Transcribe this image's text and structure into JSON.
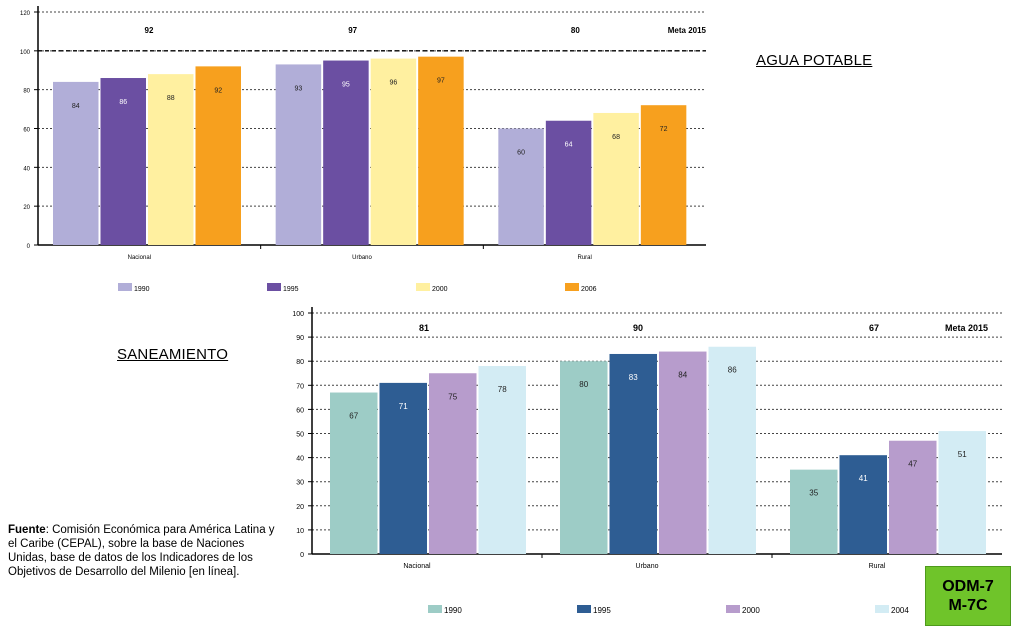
{
  "agua": {
    "title": "AGUA POTABLE",
    "chart_data": {
      "type": "bar",
      "categories": [
        "Nacional",
        "Urbano",
        "Rural"
      ],
      "series": [
        {
          "name": "1990",
          "values": [
            84,
            93,
            60
          ],
          "labels": [
            "84",
            "93",
            "60"
          ],
          "color": "#b1aed8"
        },
        {
          "name": "1995",
          "values": [
            86,
            95,
            64
          ],
          "labels": [
            "86",
            "95",
            "64"
          ],
          "color": "#6b4fa2"
        },
        {
          "name": "2000",
          "values": [
            88,
            96,
            68
          ],
          "labels": [
            "88",
            "96",
            "68"
          ],
          "color": "#fff0a0"
        },
        {
          "name": "2006",
          "values": [
            92,
            97,
            72
          ],
          "labels": [
            "92",
            "97",
            "72"
          ],
          "color": "#f7a01e"
        }
      ],
      "targets": [
        {
          "category": "Nacional",
          "label": "92"
        },
        {
          "category": "Urbano",
          "label": "97"
        },
        {
          "category": "Rural",
          "label": "80"
        }
      ],
      "meta_label": "Meta 2015",
      "ylim": [
        0,
        120
      ],
      "yticks": [
        "0",
        "20",
        "40",
        "60",
        "80",
        "100",
        "120"
      ],
      "target_line": 100,
      "grid": true,
      "legend_position": "bottom"
    }
  },
  "saneamiento": {
    "title": "SANEAMIENTO",
    "chart_data": {
      "type": "bar",
      "categories": [
        "Nacional",
        "Urbano",
        "Rural"
      ],
      "series": [
        {
          "name": "1990",
          "values": [
            67,
            80,
            35
          ],
          "labels": [
            "67",
            "80",
            "35"
          ],
          "color": "#9dccc6"
        },
        {
          "name": "1995",
          "values": [
            71,
            83,
            41
          ],
          "labels": [
            "71",
            "83",
            "41"
          ],
          "color": "#2e5d93"
        },
        {
          "name": "2000",
          "values": [
            75,
            84,
            47
          ],
          "labels": [
            "75",
            "84",
            "47"
          ],
          "color": "#b79ccc"
        },
        {
          "name": "2004",
          "values": [
            78,
            86,
            51
          ],
          "labels": [
            "78",
            "86",
            "51"
          ],
          "color": "#d3ecf4"
        }
      ],
      "targets": [
        {
          "category": "Nacional",
          "label": "81"
        },
        {
          "category": "Urbano",
          "label": "90"
        },
        {
          "category": "Rural",
          "label": "67"
        }
      ],
      "meta_label": "Meta 2015",
      "ylim": [
        0,
        100
      ],
      "yticks": [
        "0",
        "10",
        "20",
        "30",
        "40",
        "50",
        "60",
        "70",
        "80",
        "90",
        "100"
      ],
      "grid": true,
      "legend_position": "bottom"
    }
  },
  "source": {
    "heading": "Fuente",
    "text": ": Comisión Económica para América Latina y el Caribe (CEPAL), sobre la base de Naciones Unidas, base de datos de los Indicadores de los Objetivos de Desarrollo del Milenio [en línea]."
  },
  "badge": {
    "line1": "ODM-7",
    "line2": "M-7C",
    "color": "#6fc42a"
  }
}
